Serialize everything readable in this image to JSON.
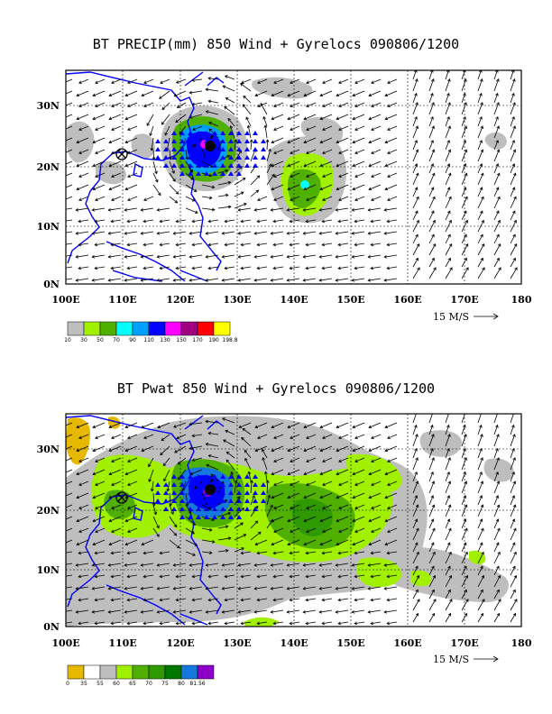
{
  "panels": [
    {
      "id": "precip",
      "title": "BT PRECIP(mm) 850 Wind + Gyrelocs 090806/1200",
      "y_ticks": [
        "0N",
        "10N",
        "20N",
        "30N"
      ],
      "x_ticks": [
        "100E",
        "110E",
        "120E",
        "130E",
        "140E",
        "150E",
        "160E",
        "170E",
        "180"
      ],
      "vector_scale": "15 M/S",
      "colorbar": {
        "labels": [
          "10",
          "30",
          "50",
          "70",
          "90",
          "110",
          "130",
          "150",
          "170",
          "190",
          "198.8"
        ],
        "colors": [
          "#bebebe",
          "#a0f000",
          "#50b000",
          "#00ffff",
          "#00a0ff",
          "#0000ff",
          "#ff00ff",
          "#a00080",
          "#ff0000",
          "#ffff00"
        ]
      }
    },
    {
      "id": "pwat",
      "title": "BT Pwat 850 Wind + Gyrelocs 090806/1200",
      "y_ticks": [
        "0N",
        "10N",
        "20N",
        "30N"
      ],
      "x_ticks": [
        "100E",
        "110E",
        "120E",
        "130E",
        "140E",
        "150E",
        "160E",
        "170E",
        "180"
      ],
      "vector_scale": "15 M/S",
      "colorbar": {
        "labels": [
          "0",
          "35",
          "55",
          "60",
          "65",
          "70",
          "75",
          "80",
          "81.56"
        ],
        "colors": [
          "#e6b800",
          "#ffffff",
          "#bebebe",
          "#a0f000",
          "#50b000",
          "#2e9a00",
          "#007800",
          "#1478dc",
          "#8c00c8"
        ]
      }
    }
  ],
  "colors": {
    "coast": "#0000ff",
    "frame": "#000000"
  }
}
